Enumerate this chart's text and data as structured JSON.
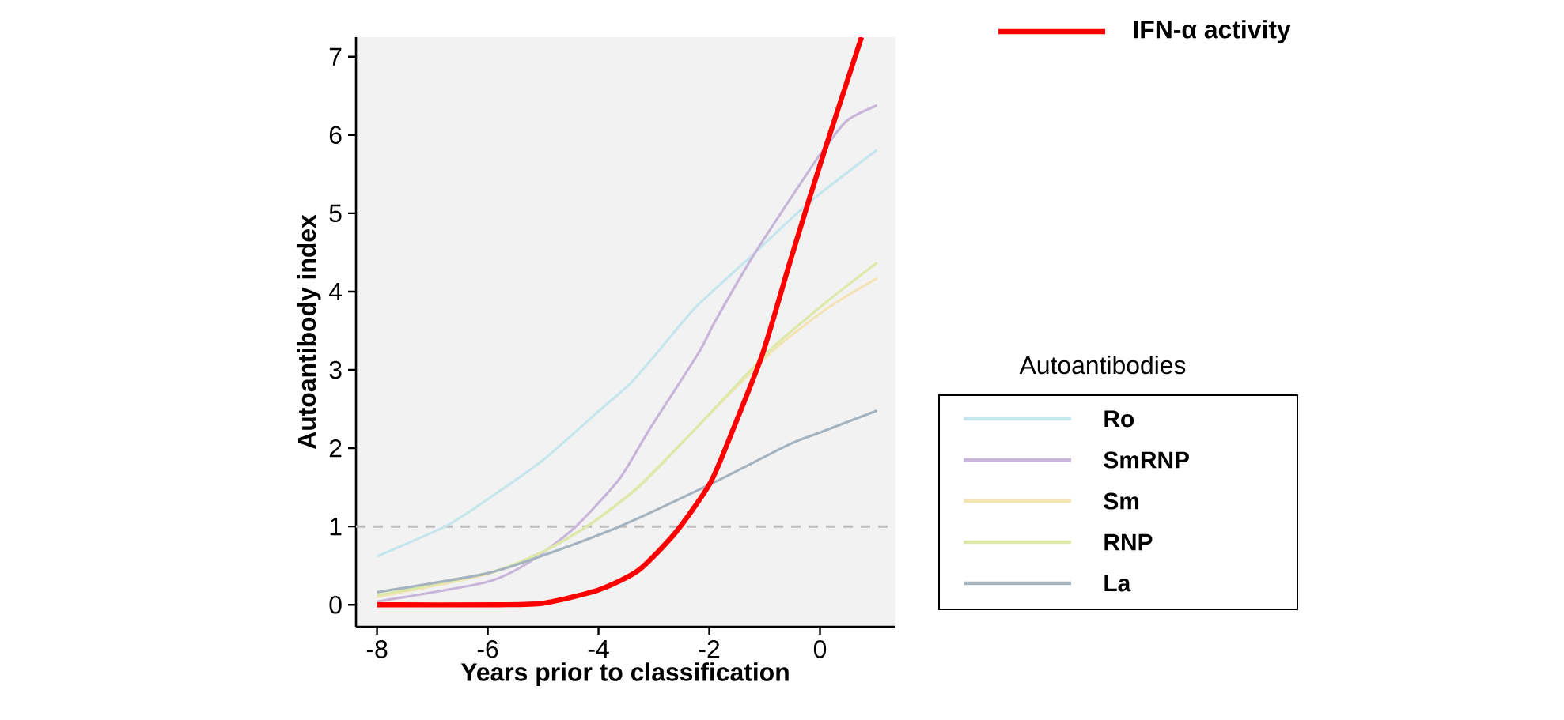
{
  "chart_data": {
    "type": "line",
    "xlabel": "Years prior to classification",
    "ylabel": "Autoantibody index",
    "legend_title": "Autoantibodies",
    "xlim": [
      -8.38,
      1.35
    ],
    "ylim": [
      -0.28,
      7.25
    ],
    "xticks": [
      -8,
      -6,
      -4,
      -2,
      0
    ],
    "yticks": [
      0,
      1,
      2,
      3,
      4,
      5,
      6,
      7
    ],
    "grid": false,
    "legend": "right",
    "marker": "none",
    "line_style": "solid",
    "ref_lines": [
      {
        "axis": "y",
        "value": 1,
        "color": "#bfbfbf",
        "line_style": "dashed"
      }
    ],
    "series": [
      {
        "name": "IFN-α activity",
        "color": "#ff0000",
        "x": [
          -8,
          -5.8,
          -5,
          -4,
          -3.28,
          -2.6,
          -1.98,
          -1.57,
          -1.03,
          -0.55,
          -0.2,
          0.17,
          0.75
        ],
        "values": [
          0,
          0,
          0.02,
          0.19,
          0.44,
          0.93,
          1.56,
          2.24,
          3.22,
          4.36,
          5.17,
          5.99,
          7.25
        ]
      },
      {
        "name": "Ro",
        "color": "#c5e6ec",
        "x": [
          -8,
          -6.77,
          -6.02,
          -5,
          -3.97,
          -3.42,
          -2.94,
          -2.26,
          -1.23,
          -0.21,
          1.03
        ],
        "values": [
          0.62,
          1.0,
          1.34,
          1.85,
          2.49,
          2.83,
          3.22,
          3.79,
          4.46,
          5.13,
          5.81
        ]
      },
      {
        "name": "SmRNP",
        "color": "#c8b5da",
        "x": [
          -8,
          -6.02,
          -5.26,
          -4.44,
          -3.62,
          -3.08,
          -2.19,
          -1.91,
          -1.23,
          -0.55,
          0,
          0.48,
          1.03
        ],
        "values": [
          0.04,
          0.29,
          0.54,
          0.98,
          1.61,
          2.24,
          3.22,
          3.6,
          4.43,
          5.17,
          5.75,
          6.18,
          6.38
        ]
      },
      {
        "name": "Sm",
        "color": "#f3e3b5",
        "x": [
          -8,
          -6.02,
          -5,
          -4.17,
          -3.28,
          -2.26,
          -0.89,
          0.14,
          1.03
        ],
        "values": [
          0.1,
          0.39,
          0.68,
          1.02,
          1.51,
          2.24,
          3.22,
          3.79,
          4.17
        ]
      },
      {
        "name": "RNP",
        "color": "#dde9a9",
        "x": [
          -8,
          -6.02,
          -5,
          -4.17,
          -3.28,
          -2.26,
          -0.89,
          0.14,
          1.03
        ],
        "values": [
          0.12,
          0.4,
          0.68,
          1.02,
          1.5,
          2.24,
          3.26,
          3.88,
          4.37
        ]
      },
      {
        "name": "La",
        "color": "#a5b3bf",
        "x": [
          -8,
          -6.02,
          -5,
          -3.62,
          -1.98,
          -0.55,
          0,
          1.03
        ],
        "values": [
          0.16,
          0.4,
          0.63,
          1.0,
          1.54,
          2.05,
          2.2,
          2.48
        ]
      }
    ]
  }
}
